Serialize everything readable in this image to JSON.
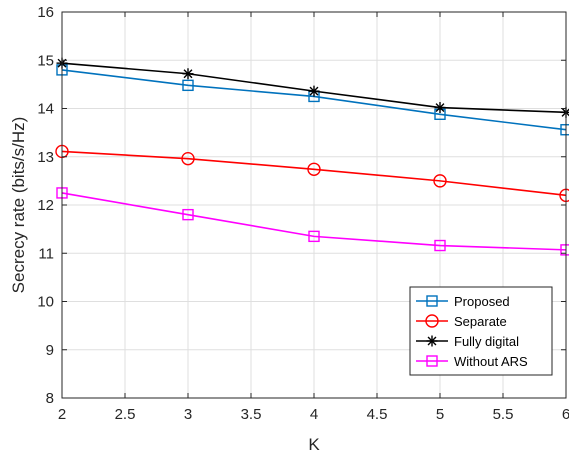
{
  "chart_data": {
    "type": "line",
    "xlabel": "K",
    "ylabel": "Secrecy rate (bits/s/Hz)",
    "xlim": [
      2,
      6
    ],
    "ylim": [
      8,
      16
    ],
    "xticks": [
      "2",
      "2.5",
      "3",
      "3.5",
      "4",
      "4.5",
      "5",
      "5.5",
      "6"
    ],
    "yticks": [
      "8",
      "9",
      "10",
      "11",
      "12",
      "13",
      "14",
      "15",
      "16"
    ],
    "grid": true,
    "legend_position": "bottom-right",
    "x": [
      2,
      3,
      4,
      5,
      6
    ],
    "series": [
      {
        "name": "Proposed",
        "color": "#0072BD",
        "marker": "square",
        "values": [
          14.8,
          14.48,
          14.25,
          13.88,
          13.56
        ]
      },
      {
        "name": "Separate",
        "color": "#FF0000",
        "marker": "circle",
        "values": [
          13.11,
          12.96,
          12.74,
          12.5,
          12.2
        ]
      },
      {
        "name": "Fully digital",
        "color": "#000000",
        "marker": "asterisk",
        "values": [
          14.94,
          14.72,
          14.36,
          14.02,
          13.92
        ]
      },
      {
        "name": "Without ARS",
        "color": "#FF00FF",
        "marker": "square",
        "values": [
          12.25,
          11.8,
          11.35,
          11.16,
          11.07
        ]
      }
    ]
  }
}
